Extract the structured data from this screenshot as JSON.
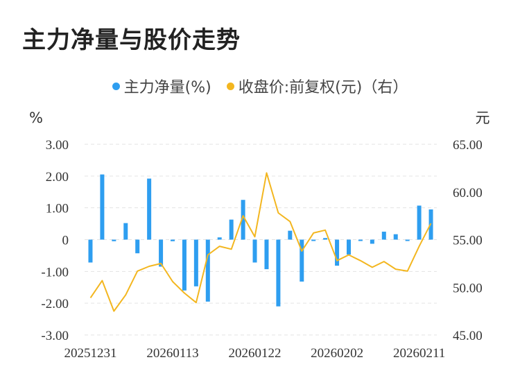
{
  "title": "主力净量与股价走势",
  "legend": [
    {
      "label": "主力净量(%)",
      "color": "#2e9ef0"
    },
    {
      "label": "收盘价:前复权(元)（右）",
      "color": "#f3b61f"
    }
  ],
  "chart_data": {
    "type": "bar+line",
    "left_unit": "%",
    "right_unit": "元",
    "ylim_left": [
      -3,
      3
    ],
    "ylim_right": [
      45,
      65
    ],
    "left_ticks": [
      "3.00",
      "2.00",
      "1.00",
      "0",
      "-1.00",
      "-2.00",
      "-3.00"
    ],
    "right_ticks": [
      "65.00",
      "60.00",
      "55.00",
      "50.00",
      "45.00"
    ],
    "x_tick_labels": [
      "20251231",
      "20260113",
      "20260122",
      "20260202",
      "20260211"
    ],
    "grid": true,
    "legend_position": "top-center",
    "series": [
      {
        "name": "主力净量(%)",
        "type": "bar",
        "color": "#2e9ef0",
        "values": [
          -0.72,
          2.05,
          -0.05,
          0.52,
          -0.43,
          1.92,
          -0.85,
          -0.05,
          -1.6,
          -1.47,
          -1.95,
          0.07,
          0.63,
          1.25,
          -0.72,
          -0.93,
          -2.1,
          0.28,
          -1.32,
          -0.04,
          0.05,
          -0.82,
          -0.47,
          -0.03,
          -0.13,
          0.25,
          0.17,
          -0.02,
          1.07,
          0.95
        ]
      },
      {
        "name": "收盘价:前复权(元)（右）",
        "type": "line",
        "color": "#f3b61f",
        "values": [
          48.9,
          50.7,
          47.5,
          49.2,
          51.7,
          52.2,
          52.5,
          50.6,
          49.4,
          48.4,
          53.4,
          54.3,
          54.0,
          57.5,
          55.3,
          62.0,
          57.8,
          56.9,
          53.8,
          55.7,
          56.0,
          52.8,
          53.4,
          52.8,
          52.1,
          52.7,
          51.9,
          51.7,
          54.3,
          56.7
        ]
      }
    ]
  }
}
